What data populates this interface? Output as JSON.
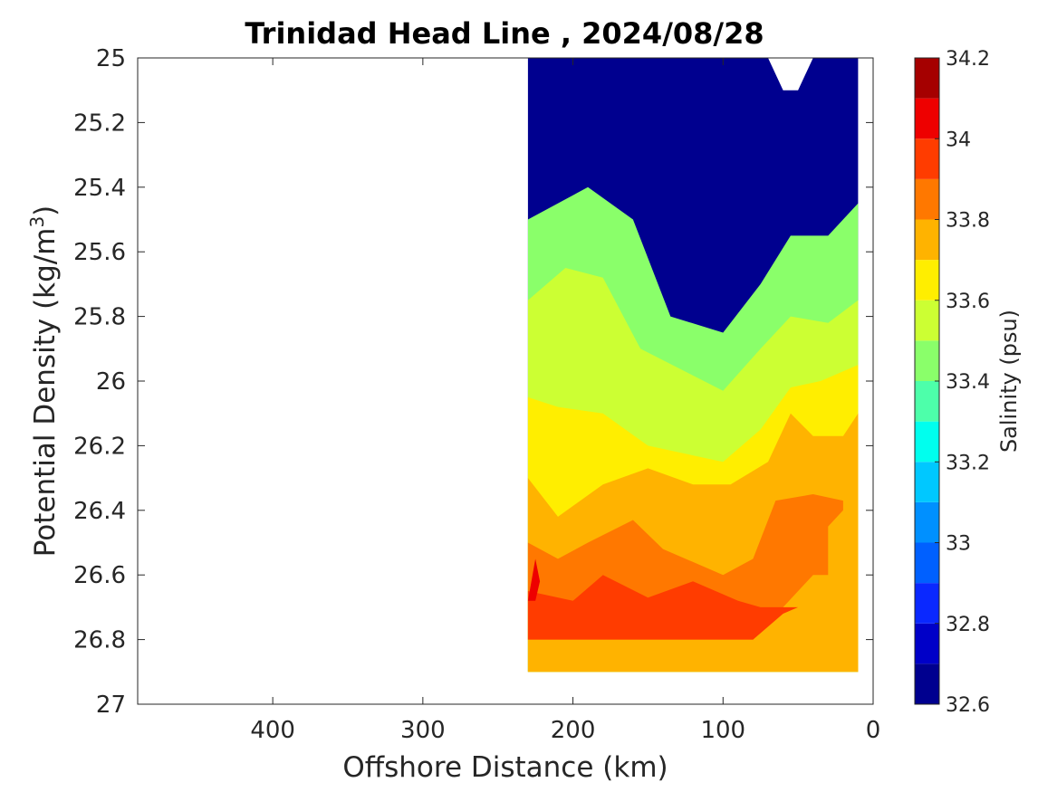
{
  "chart_data": {
    "type": "contour",
    "title": "Trinidad Head Line , 2024/08/28",
    "xlabel": "Offshore Distance (km)",
    "ylabel_main": "Potential Density (kg/m",
    "ylabel_sup": "3",
    "ylabel_close": ")",
    "xlim": [
      490,
      0
    ],
    "ylim": [
      25,
      27
    ],
    "xticks": [
      400,
      300,
      200,
      100,
      0
    ],
    "xtick_labels": [
      "400",
      "300",
      "200",
      "100",
      "0"
    ],
    "yticks": [
      25,
      25.2,
      25.4,
      25.6,
      25.8,
      26,
      26.2,
      26.4,
      26.6,
      26.8,
      27
    ],
    "ytick_labels": [
      "25",
      "25.2",
      "25.4",
      "25.6",
      "25.8",
      "26",
      "26.2",
      "26.4",
      "26.6",
      "26.8",
      "27"
    ],
    "colorbar": {
      "label": "Salinity (psu)",
      "range": [
        32.6,
        34.2
      ],
      "levels": [
        32.6,
        32.7,
        32.8,
        32.9,
        33.0,
        33.1,
        33.2,
        33.3,
        33.4,
        33.5,
        33.6,
        33.7,
        33.8,
        33.9,
        34.0,
        34.1,
        34.2
      ],
      "colors": [
        "#00008f",
        "#0000c8",
        "#0a28ff",
        "#0060ff",
        "#0090ff",
        "#00c8ff",
        "#00ffee",
        "#4dffaa",
        "#8aff6a",
        "#ccff33",
        "#ffee00",
        "#ffb300",
        "#ff7800",
        "#ff3c00",
        "#ee0000",
        "#a50000"
      ],
      "tick_values": [
        32.6,
        32.8,
        33.0,
        33.2,
        33.4,
        33.6,
        33.8,
        34.0,
        34.2
      ],
      "tick_labels": [
        "32.6",
        "32.8",
        "33",
        "33.2",
        "33.4",
        "33.6",
        "33.8",
        "34",
        "34.2"
      ]
    },
    "grid": false,
    "contour_levels": [
      {
        "salinity": 32.6,
        "boundary": [
          [
            230,
            25
          ],
          [
            10,
            25
          ],
          [
            10,
            26.9
          ],
          [
            230,
            26.9
          ]
        ]
      },
      {
        "salinity": 33.4,
        "boundary": [
          [
            230,
            25.5
          ],
          [
            190,
            25.4
          ],
          [
            160,
            25.5
          ],
          [
            135,
            25.8
          ],
          [
            100,
            25.85
          ],
          [
            75,
            25.7
          ],
          [
            55,
            25.55
          ],
          [
            30,
            25.55
          ],
          [
            10,
            25.45
          ],
          [
            10,
            26.9
          ],
          [
            230,
            26.9
          ]
        ]
      },
      {
        "salinity": 33.5,
        "boundary": [
          [
            230,
            25.75
          ],
          [
            205,
            25.65
          ],
          [
            180,
            25.68
          ],
          [
            155,
            25.9
          ],
          [
            100,
            26.03
          ],
          [
            75,
            25.9
          ],
          [
            55,
            25.8
          ],
          [
            30,
            25.82
          ],
          [
            10,
            25.75
          ],
          [
            10,
            26.9
          ],
          [
            230,
            26.9
          ]
        ]
      },
      {
        "salinity": 33.6,
        "boundary": [
          [
            230,
            26.05
          ],
          [
            210,
            26.08
          ],
          [
            180,
            26.1
          ],
          [
            150,
            26.2
          ],
          [
            100,
            26.25
          ],
          [
            75,
            26.15
          ],
          [
            55,
            26.02
          ],
          [
            35,
            26.0
          ],
          [
            10,
            25.95
          ],
          [
            10,
            26.9
          ],
          [
            230,
            26.9
          ]
        ]
      },
      {
        "salinity": 33.7,
        "boundary": [
          [
            230,
            26.3
          ],
          [
            210,
            26.42
          ],
          [
            180,
            26.32
          ],
          [
            150,
            26.27
          ],
          [
            120,
            26.32
          ],
          [
            95,
            26.32
          ],
          [
            70,
            26.25
          ],
          [
            55,
            26.1
          ],
          [
            40,
            26.17
          ],
          [
            20,
            26.17
          ],
          [
            10,
            26.1
          ],
          [
            10,
            26.9
          ],
          [
            230,
            26.9
          ]
        ]
      },
      {
        "salinity": 33.8,
        "boundary": [
          [
            230,
            26.5
          ],
          [
            210,
            26.55
          ],
          [
            190,
            26.5
          ],
          [
            160,
            26.43
          ],
          [
            140,
            26.52
          ],
          [
            100,
            26.6
          ],
          [
            80,
            26.55
          ],
          [
            65,
            26.37
          ],
          [
            40,
            26.35
          ],
          [
            20,
            26.37
          ],
          [
            20,
            26.4
          ],
          [
            30,
            26.45
          ],
          [
            30,
            26.6
          ],
          [
            40,
            26.6
          ],
          [
            60,
            26.7
          ],
          [
            80,
            26.8
          ],
          [
            230,
            26.8
          ]
        ]
      },
      {
        "salinity": 33.9,
        "boundary": [
          [
            230,
            26.65
          ],
          [
            200,
            26.68
          ],
          [
            180,
            26.6
          ],
          [
            150,
            26.67
          ],
          [
            120,
            26.62
          ],
          [
            90,
            26.68
          ],
          [
            75,
            26.7
          ],
          [
            50,
            26.7
          ],
          [
            60,
            26.72
          ],
          [
            80,
            26.8
          ],
          [
            230,
            26.8
          ]
        ]
      },
      {
        "salinity": 34.0,
        "boundary": [
          [
            225,
            26.55
          ],
          [
            222,
            26.62
          ],
          [
            225,
            26.68
          ],
          [
            230,
            26.68
          ]
        ]
      }
    ],
    "white_gaps": [
      {
        "boundary": [
          [
            70,
            25
          ],
          [
            40,
            25
          ],
          [
            50,
            25.1
          ],
          [
            60,
            25.1
          ]
        ]
      }
    ]
  }
}
